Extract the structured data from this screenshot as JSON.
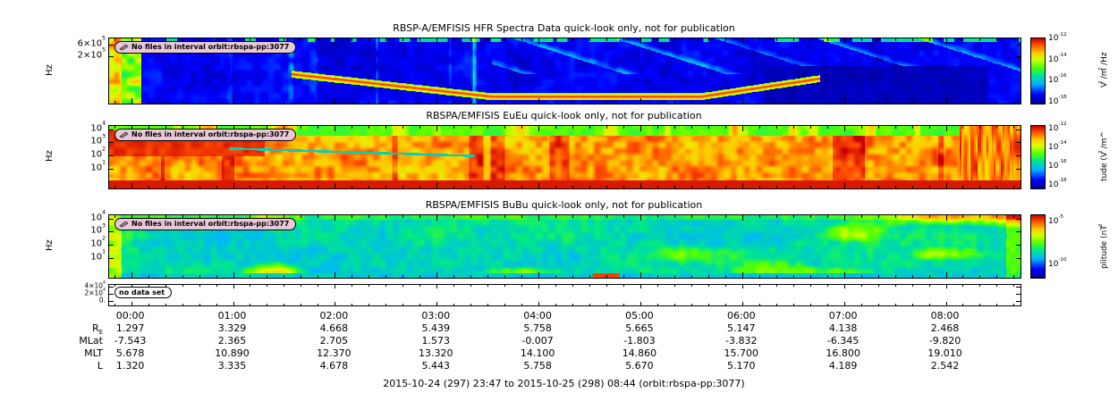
{
  "figure": {
    "caption": "2015-10-24 (297) 23:47 to 2015-10-25 (298) 08:44 (orbit:rbspa-pp:3077)",
    "background": "#ffffff"
  },
  "colormap": [
    {
      "t": 0.0,
      "c": "#00008c"
    },
    {
      "t": 0.14,
      "c": "#0000ff"
    },
    {
      "t": 0.3,
      "c": "#00b2ff"
    },
    {
      "t": 0.44,
      "c": "#00e68c"
    },
    {
      "t": 0.56,
      "c": "#55ff00"
    },
    {
      "t": 0.68,
      "c": "#d7ff00"
    },
    {
      "t": 0.78,
      "c": "#ffc800"
    },
    {
      "t": 0.9,
      "c": "#ff5000"
    },
    {
      "t": 1.0,
      "c": "#c80000"
    }
  ],
  "chart_data": [
    {
      "id": "hfr",
      "type": "heatmap",
      "title": "RBSP-A/EMFISIS  HFR Spectra Data quick-look only, not for publication",
      "badge": "No files in interval orbit:rbspa-pp:3077",
      "ylabel": "Hz",
      "yticks": [
        {
          "label": "6×10^5",
          "pos": 0.09
        },
        {
          "label": "2×10^5",
          "pos": 0.27
        }
      ],
      "colorbar": {
        "label": "V^2/m^2/Hz",
        "ticks": [
          {
            "label": "10^-12",
            "pos": 0.02
          },
          {
            "label": "10^-14",
            "pos": 0.34
          },
          {
            "label": "10^-16",
            "pos": 0.66
          },
          {
            "label": "10^-18",
            "pos": 0.98
          }
        ]
      },
      "x_start": "23:47",
      "x_end": "08:44",
      "description": "Low-intensity blue background with intermittent cyan/green vertical burst streaks, bright broadband burst at left edge, thin intense red-orange band curving through low frequencies mid-interval, diagonal green striations upper right, dark quiet block lower right"
    },
    {
      "id": "eueu",
      "type": "heatmap",
      "title": "RBSPA/EMFISIS  EuEu quick-look only, not for publication",
      "badge": "No files in interval orbit:rbspa-pp:3077",
      "ylabel": "Hz",
      "yticks": [
        {
          "label": "10^4",
          "pos": 0.05
        },
        {
          "label": "10^3",
          "pos": 0.26
        },
        {
          "label": "10^2",
          "pos": 0.47
        },
        {
          "label": "10^1",
          "pos": 0.68
        }
      ],
      "colorbar": {
        "label": "tude (V^2/m^",
        "ticks": [
          {
            "label": "10^-12",
            "pos": 0.05
          },
          {
            "label": "10^-14",
            "pos": 0.36
          },
          {
            "label": "10^-16",
            "pos": 0.66
          },
          {
            "label": "10^-18",
            "pos": 0.96
          }
        ]
      },
      "x_start": "23:47",
      "x_end": "08:44",
      "description": "Broadband intense red-orange electric field spectral amplitude across most frequencies and times, green band at highest frequencies, solid red band at lowest frequencies, strong red block upper-left"
    },
    {
      "id": "bubu",
      "type": "heatmap",
      "title": "RBSPA/EMFISIS  BuBu quick-look only, not for publication",
      "badge": "No files in interval orbit:rbspa-pp:3077",
      "ylabel": "Hz",
      "yticks": [
        {
          "label": "10^4",
          "pos": 0.05
        },
        {
          "label": "10^3",
          "pos": 0.26
        },
        {
          "label": "10^2",
          "pos": 0.47
        },
        {
          "label": "10^1",
          "pos": 0.68
        }
      ],
      "colorbar": {
        "label": "plitude (nT^2",
        "ticks": [
          {
            "label": "10^-5",
            "pos": 0.12
          },
          {
            "label": "10^-10",
            "pos": 0.8
          }
        ]
      },
      "x_start": "23:47",
      "x_end": "08:44",
      "description": "Moderate cyan-green broadband magnetic spectral amplitude with patchy yellow-green enhancements and a small red spot near the bottom mid-interval"
    },
    {
      "id": "empty",
      "type": "heatmap",
      "title": "",
      "badge": "no data set",
      "ylabel": "",
      "yticks": [
        {
          "label": "4×10^4",
          "pos": 0.08
        },
        {
          "label": "2×10^4",
          "pos": 0.42
        },
        {
          "label": "0.",
          "pos": 0.8
        }
      ],
      "colorbar": null,
      "x_start": "23:47",
      "x_end": "08:44",
      "description": "empty panel, no data set"
    }
  ],
  "time_axis": {
    "ticks": [
      "00:00",
      "01:00",
      "02:00",
      "03:00",
      "04:00",
      "05:00",
      "06:00",
      "07:00",
      "08:00"
    ],
    "start_offset_min": 13,
    "total_min": 537
  },
  "ephemeris": {
    "rows": [
      {
        "label": "R",
        "sub": "E",
        "values": [
          "1.297",
          "3.329",
          "4.668",
          "5.439",
          "5.758",
          "5.665",
          "5.147",
          "4.138",
          "2.468"
        ]
      },
      {
        "label": "MLat",
        "sub": "",
        "values": [
          "-7.543",
          "2.365",
          "2.705",
          "1.573",
          "-0.007",
          "-1.803",
          "-3.832",
          "-6.345",
          "-9.820"
        ]
      },
      {
        "label": "MLT",
        "sub": "",
        "values": [
          "5.678",
          "10.890",
          "12.370",
          "13.320",
          "14.100",
          "14.860",
          "15.700",
          "16.800",
          "19.010"
        ]
      },
      {
        "label": "L",
        "sub": "",
        "values": [
          "1.320",
          "3.335",
          "4.678",
          "5.443",
          "5.758",
          "5.670",
          "5.170",
          "4.189",
          "2.542"
        ]
      }
    ]
  }
}
